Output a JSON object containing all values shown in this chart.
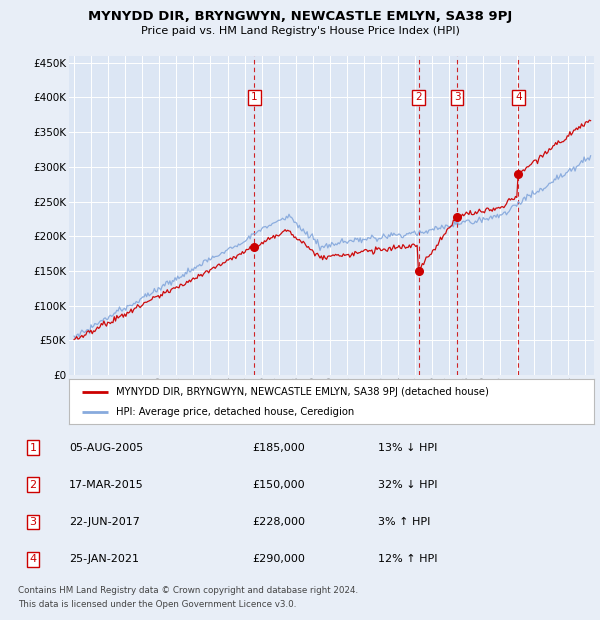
{
  "title": "MYNYDD DIR, BRYNGWYN, NEWCASTLE EMLYN, SA38 9PJ",
  "subtitle": "Price paid vs. HM Land Registry's House Price Index (HPI)",
  "background_color": "#e8eef7",
  "plot_bg_color": "#dce6f4",
  "ylim": [
    0,
    460000
  ],
  "yticks": [
    0,
    50000,
    100000,
    150000,
    200000,
    250000,
    300000,
    350000,
    400000,
    450000
  ],
  "xlim_start": 1994.7,
  "xlim_end": 2025.5,
  "transactions": [
    {
      "num": 1,
      "date": "05-AUG-2005",
      "year": 2005.58,
      "price": 185000,
      "hpi_rel": "13% ↓ HPI"
    },
    {
      "num": 2,
      "date": "17-MAR-2015",
      "year": 2015.21,
      "price": 150000,
      "hpi_rel": "32% ↓ HPI"
    },
    {
      "num": 3,
      "date": "22-JUN-2017",
      "year": 2017.47,
      "price": 228000,
      "hpi_rel": "3% ↑ HPI"
    },
    {
      "num": 4,
      "date": "25-JAN-2021",
      "year": 2021.07,
      "price": 290000,
      "hpi_rel": "12% ↑ HPI"
    }
  ],
  "legend_label_red": "MYNYDD DIR, BRYNGWYN, NEWCASTLE EMLYN, SA38 9PJ (detached house)",
  "legend_label_blue": "HPI: Average price, detached house, Ceredigion",
  "footnote1": "Contains HM Land Registry data © Crown copyright and database right 2024.",
  "footnote2": "This data is licensed under the Open Government Licence v3.0.",
  "red_color": "#cc0000",
  "blue_color": "#88aadd",
  "marker_fill": "#cc0000"
}
